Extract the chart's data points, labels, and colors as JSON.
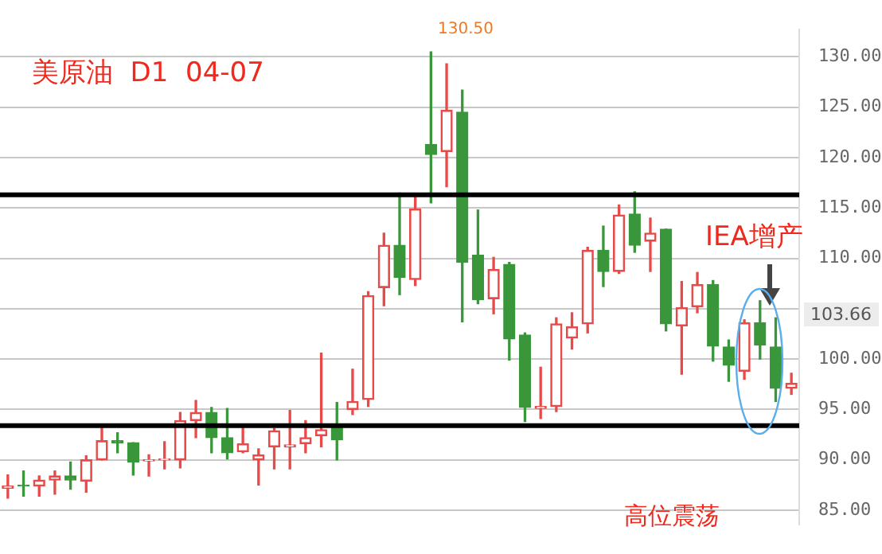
{
  "chart_data": {
    "type": "candlestick",
    "title": "美原油  D1  04-07",
    "categories": [
      null,
      null,
      null,
      null,
      null,
      null,
      null,
      null,
      null,
      null,
      null,
      null,
      null,
      null,
      null,
      null,
      null,
      null,
      null,
      null,
      null,
      null,
      null,
      null,
      null,
      null,
      null,
      null,
      null,
      null,
      null,
      null,
      null,
      null,
      null,
      null,
      null,
      null,
      null,
      null,
      null,
      null,
      null,
      null,
      null,
      null,
      null,
      null,
      null,
      null,
      null
    ],
    "ohlc": [
      [
        87.2,
        88.5,
        86.2,
        87.4
      ],
      [
        87.5,
        88.9,
        86.4,
        87.4
      ],
      [
        87.4,
        88.4,
        86.4,
        88.0
      ],
      [
        88.0,
        88.9,
        86.6,
        88.4
      ],
      [
        88.4,
        89.8,
        87.1,
        88.0
      ],
      [
        87.9,
        90.4,
        86.8,
        90.0
      ],
      [
        90.0,
        93.2,
        90.0,
        91.9
      ],
      [
        91.9,
        92.7,
        90.7,
        91.7
      ],
      [
        91.7,
        91.7,
        88.5,
        89.8
      ],
      [
        89.9,
        90.5,
        88.4,
        90.0
      ],
      [
        90.0,
        91.8,
        89.1,
        90.1
      ],
      [
        90.0,
        94.7,
        89.2,
        93.9
      ],
      [
        93.9,
        95.9,
        92.2,
        94.7
      ],
      [
        94.7,
        95.2,
        90.7,
        92.2
      ],
      [
        92.2,
        95.1,
        90.1,
        90.7
      ],
      [
        90.8,
        93.3,
        90.7,
        91.6
      ],
      [
        90.0,
        91.1,
        87.5,
        90.5
      ],
      [
        91.3,
        93.1,
        89.1,
        92.9
      ],
      [
        91.3,
        94.9,
        89.1,
        91.5
      ],
      [
        91.6,
        93.9,
        90.7,
        92.2
      ],
      [
        92.4,
        100.6,
        91.3,
        93.0
      ],
      [
        93.4,
        95.7,
        90.0,
        92.0
      ],
      [
        95.0,
        99.0,
        94.5,
        95.8
      ],
      [
        96.0,
        106.7,
        95.3,
        106.3
      ],
      [
        107.1,
        112.5,
        105.3,
        111.3
      ],
      [
        111.3,
        116.5,
        106.4,
        108.1
      ],
      [
        107.9,
        116.1,
        107.3,
        114.9
      ],
      [
        121.3,
        130.5,
        115.5,
        120.3
      ],
      [
        120.6,
        129.3,
        117.1,
        124.7
      ],
      [
        124.5,
        126.7,
        103.7,
        109.6
      ],
      [
        110.3,
        114.8,
        105.5,
        105.9
      ],
      [
        106.0,
        110.1,
        104.5,
        108.9
      ],
      [
        109.4,
        109.6,
        99.9,
        102.0
      ],
      [
        102.4,
        102.6,
        93.8,
        95.2
      ],
      [
        95.1,
        99.2,
        94.1,
        95.3
      ],
      [
        95.3,
        104.1,
        94.8,
        103.5
      ],
      [
        102.1,
        104.6,
        101.0,
        103.2
      ],
      [
        103.5,
        111.1,
        102.6,
        110.8
      ],
      [
        110.8,
        113.2,
        107.2,
        108.7
      ],
      [
        108.7,
        115.3,
        108.5,
        114.3
      ],
      [
        114.4,
        116.6,
        110.6,
        111.3
      ],
      [
        111.7,
        114.0,
        108.7,
        112.5
      ],
      [
        112.9,
        112.9,
        102.8,
        103.5
      ],
      [
        103.3,
        107.7,
        98.5,
        105.1
      ],
      [
        105.2,
        108.6,
        104.6,
        107.4
      ],
      [
        107.4,
        107.8,
        99.8,
        101.3
      ],
      [
        101.2,
        101.9,
        97.8,
        99.4
      ],
      [
        98.8,
        103.9,
        98.0,
        103.6
      ],
      [
        103.6,
        105.8,
        100.0,
        101.4
      ],
      [
        101.2,
        104.1,
        95.8,
        97.1
      ],
      [
        97.1,
        98.6,
        96.5,
        97.6
      ]
    ],
    "colors": [
      "#e84a4a",
      "#3a963a",
      "#e84a4a",
      "#e84a4a",
      "#3a963a",
      "#e84a4a",
      "#e84a4a",
      "#3a963a",
      "#3a963a",
      "#e84a4a",
      "#e84a4a",
      "#e84a4a",
      "#e84a4a",
      "#3a963a",
      "#3a963a",
      "#e84a4a",
      "#e84a4a",
      "#e84a4a",
      "#e84a4a",
      "#e84a4a",
      "#e84a4a",
      "#3a963a",
      "#e84a4a",
      "#e84a4a",
      "#e84a4a",
      "#3a963a",
      "#e84a4a",
      "#3a963a",
      "#e84a4a",
      "#3a963a",
      "#3a963a",
      "#e84a4a",
      "#3a963a",
      "#3a963a",
      "#e84a4a",
      "#e84a4a",
      "#e84a4a",
      "#e84a4a",
      "#3a963a",
      "#e84a4a",
      "#3a963a",
      "#e84a4a",
      "#3a963a",
      "#e84a4a",
      "#e84a4a",
      "#3a963a",
      "#3a963a",
      "#e84a4a",
      "#3a963a",
      "#3a963a",
      "#e84a4a"
    ],
    "ylim": [
      83.6,
      132.7
    ],
    "yticks": [
      {
        "value": 85,
        "label": "85.00"
      },
      {
        "value": 90,
        "label": "90.00"
      },
      {
        "value": 95,
        "label": "95.00"
      },
      {
        "value": 100,
        "label": "100.00"
      },
      {
        "value": 105,
        "label": null
      },
      {
        "value": 110,
        "label": "110.00"
      },
      {
        "value": 115,
        "label": "115.00"
      },
      {
        "value": 120,
        "label": "120.00"
      },
      {
        "value": 125,
        "label": "125.00"
      },
      {
        "value": 130,
        "label": "130.00"
      }
    ],
    "grid": "y",
    "ref_lines": [
      {
        "axis": "y",
        "value": 116.3,
        "color": "#000000"
      },
      {
        "axis": "y",
        "value": 93.4,
        "color": "#000000"
      }
    ],
    "annotations": [
      "130.50",
      "103.66",
      "IEA增产",
      "高位震荡"
    ]
  }
}
